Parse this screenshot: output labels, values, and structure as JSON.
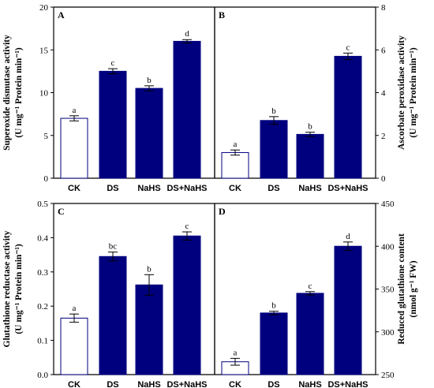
{
  "chart_data": [
    {
      "panel": "A",
      "type": "bar",
      "categories": [
        "CK",
        "DS",
        "NaHS",
        "DS+NaHS"
      ],
      "values": [
        7.0,
        12.5,
        10.5,
        16.0
      ],
      "errors": [
        0.3,
        0.3,
        0.3,
        0.2
      ],
      "significance": [
        "a",
        "c",
        "b",
        "d"
      ],
      "ylabel": "Superoxide dismutase activity",
      "ylabel_unit": "(U mg⁻¹ Protein min⁻¹)",
      "ylim": [
        0,
        20
      ],
      "yticks": [
        "0",
        "5",
        "10",
        "15",
        "20"
      ],
      "yaxis_side": "left"
    },
    {
      "panel": "B",
      "type": "bar",
      "categories": [
        "CK",
        "DS",
        "NaHS",
        "DS+NaHS"
      ],
      "values": [
        1.2,
        2.7,
        2.05,
        5.7
      ],
      "errors": [
        0.12,
        0.18,
        0.1,
        0.15
      ],
      "significance": [
        "a",
        "b",
        "b",
        "c"
      ],
      "ylabel": "Ascorbate peroxidase activity",
      "ylabel_unit": "(U mg⁻¹ Protein min⁻¹)",
      "ylim": [
        0,
        8
      ],
      "yticks": [
        "0",
        "2",
        "4",
        "6",
        "8"
      ],
      "yaxis_side": "right"
    },
    {
      "panel": "C",
      "type": "bar",
      "categories": [
        "CK",
        "DS",
        "NaHS",
        "DS+NaHS"
      ],
      "values": [
        0.165,
        0.345,
        0.262,
        0.405
      ],
      "errors": [
        0.012,
        0.013,
        0.03,
        0.012
      ],
      "significance": [
        "a",
        "bc",
        "b",
        "c"
      ],
      "ylabel": "Glutathione reductase activity",
      "ylabel_unit": "(U mg⁻¹ Protein min⁻¹)",
      "ylim": [
        0,
        0.5
      ],
      "yticks": [
        "0.0",
        "0.1",
        "0.2",
        "0.3",
        "0.4",
        "0.5"
      ],
      "yaxis_side": "left"
    },
    {
      "panel": "D",
      "type": "bar",
      "categories": [
        "CK",
        "DS",
        "NaHS",
        "DS+NaHS"
      ],
      "values": [
        265,
        322,
        345,
        400
      ],
      "errors": [
        4,
        2,
        2,
        5
      ],
      "significance": [
        "a",
        "b",
        "c",
        "d"
      ],
      "ylabel": "Reduced glutathione content",
      "ylabel_unit": "(nmol g⁻¹ FW)",
      "ylim": [
        250,
        450
      ],
      "yticks": [
        "250",
        "300",
        "350",
        "400",
        "450"
      ],
      "yaxis_side": "right"
    }
  ],
  "colors": {
    "control_bar": "#ffffff",
    "treatment_bar": "#00007f",
    "axis": "#000000"
  }
}
